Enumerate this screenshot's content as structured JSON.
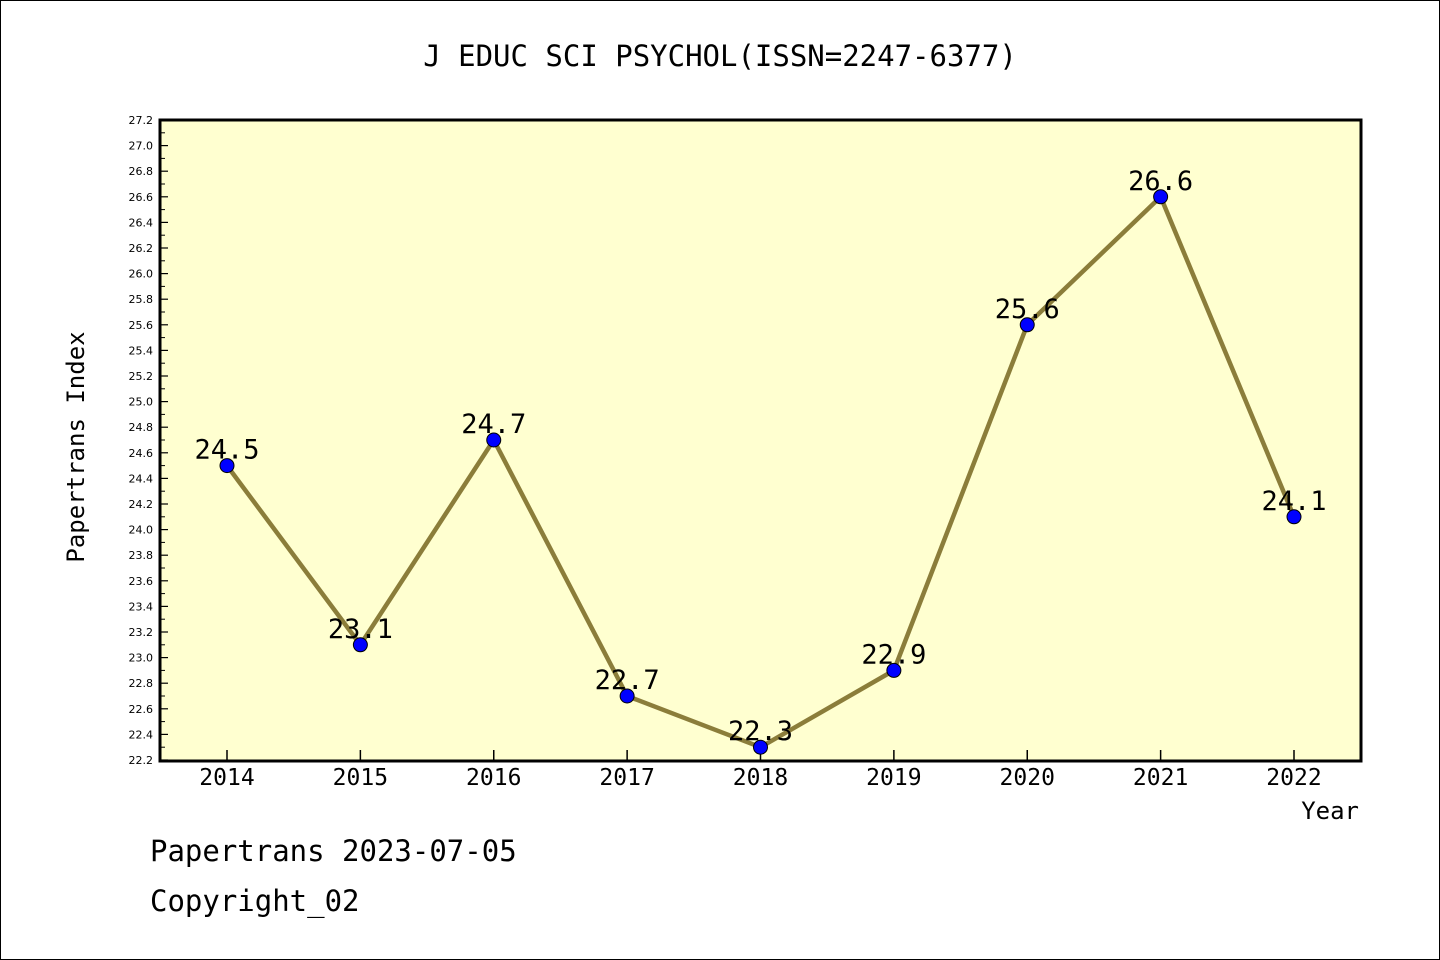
{
  "chart_data": {
    "type": "line",
    "title": "J EDUC SCI PSYCHOL(ISSN=2247-6377)",
    "xlabel": "Year",
    "ylabel": "Papertrans Index",
    "x": [
      "2014",
      "2015",
      "2016",
      "2017",
      "2018",
      "2019",
      "2020",
      "2021",
      "2022"
    ],
    "values": [
      24.5,
      23.1,
      24.7,
      22.7,
      22.3,
      22.9,
      25.6,
      26.6,
      24.1
    ],
    "data_labels": [
      "24.5",
      "23.1",
      "24.7",
      "22.7",
      "22.3",
      "22.9",
      "25.6",
      "26.6",
      "24.1"
    ],
    "ylim": [
      22.2,
      27.2
    ],
    "ytick_step": 0.2,
    "y_tick_labels": [
      "22.2",
      "22.4",
      "22.6",
      "22.8",
      "23.0",
      "23.2",
      "23.4",
      "23.6",
      "23.8",
      "24.0",
      "24.2",
      "24.4",
      "24.6",
      "24.8",
      "25.0",
      "25.2",
      "25.4",
      "25.6",
      "25.8",
      "26.0",
      "26.2",
      "26.4",
      "26.6",
      "26.8",
      "27.0",
      "27.2"
    ],
    "grid": false,
    "colors": {
      "plot_background": "#ffffd0",
      "line": "#8b7d3a",
      "marker": "#0000ff"
    }
  },
  "footer": {
    "line1": "Papertrans 2023-07-05",
    "line2": "Copyright_02"
  }
}
